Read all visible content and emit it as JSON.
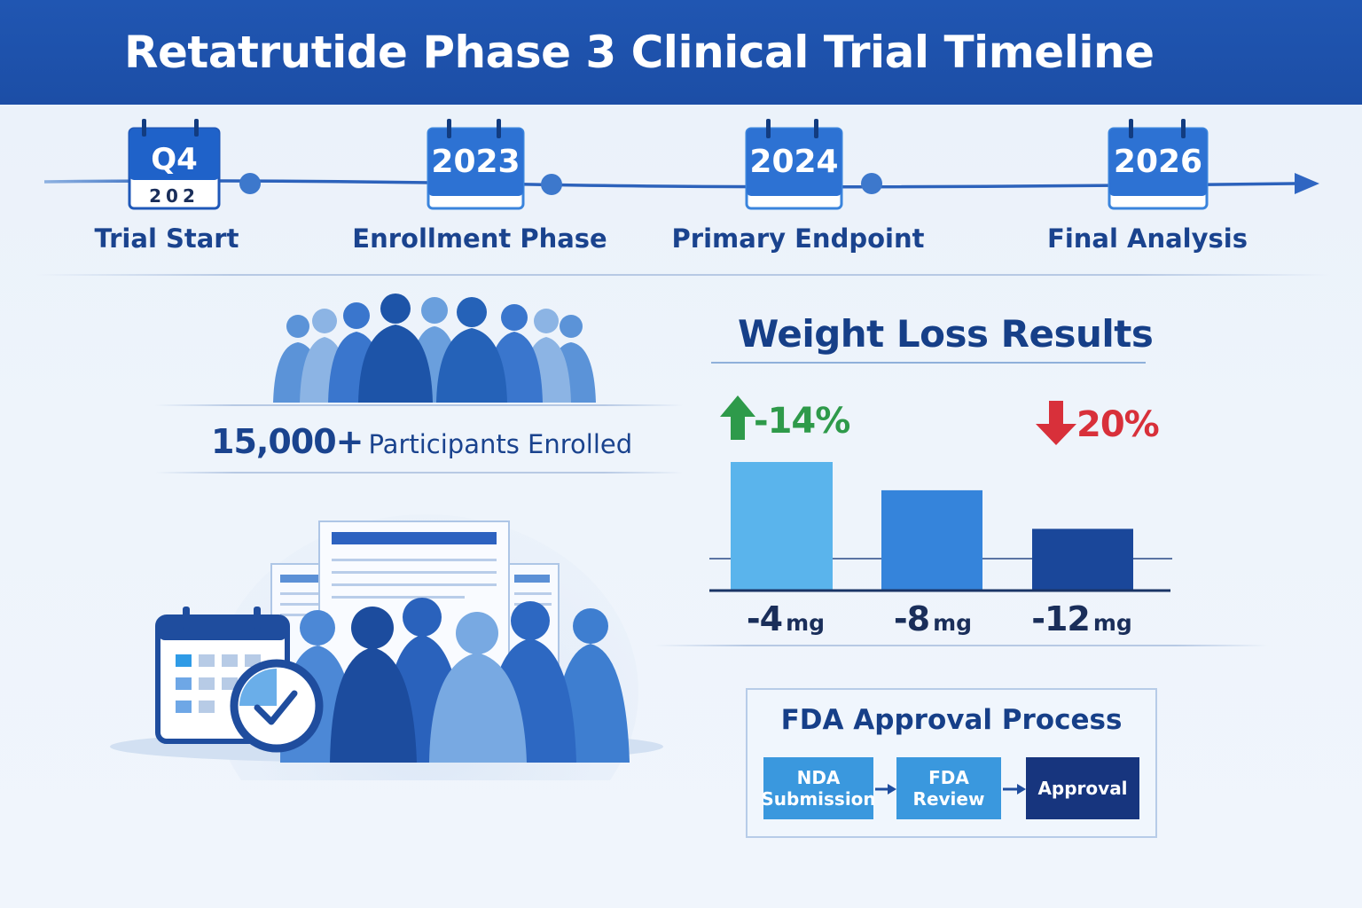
{
  "header": {
    "title": "Retatrutide Phase 3 Clinical Trial Timeline"
  },
  "timeline": {
    "milestones": [
      {
        "top": "Q4",
        "bottom": "202",
        "label": "Trial Start"
      },
      {
        "top": "2023",
        "bottom": "",
        "label": "Enrollment Phase"
      },
      {
        "top": "2024",
        "bottom": "",
        "label": "Primary Endpoint"
      },
      {
        "top": "2026",
        "bottom": "",
        "label": "Final Analysis"
      }
    ]
  },
  "enrollment": {
    "count": "15,000+",
    "caption": "Participants Enrolled"
  },
  "results": {
    "title": "Weight Loss Results",
    "indicators": [
      {
        "text": "-14%",
        "direction": "up",
        "color": "#2e9a4a"
      },
      {
        "text": "20%",
        "direction": "down",
        "color": "#d8303a"
      }
    ]
  },
  "chart_data": {
    "type": "bar",
    "title": "Weight Loss Results",
    "categories": [
      "-4 mg",
      "-8 mg",
      "-12 mg"
    ],
    "category_parts": [
      {
        "num": "-4",
        "unit": "mg"
      },
      {
        "num": "-8",
        "unit": "mg"
      },
      {
        "num": "-12",
        "unit": "mg"
      }
    ],
    "values": [
      1.0,
      0.78,
      0.48
    ],
    "colors": [
      "#5ab4ec",
      "#3584db",
      "#1a479a"
    ],
    "xlabel": "",
    "ylabel": "",
    "grid": false
  },
  "fda": {
    "title": "FDA Approval Process",
    "steps": [
      {
        "line1": "NDA",
        "line2": "Submission",
        "color": "#3a98de"
      },
      {
        "line1": "FDA",
        "line2": "Review",
        "color": "#3a98de"
      },
      {
        "line1": "Approval",
        "line2": "",
        "color": "#17357e"
      }
    ]
  },
  "colors": {
    "primary": "#1c4ea6",
    "accent": "#3a8fe0",
    "dark": "#17357e"
  }
}
